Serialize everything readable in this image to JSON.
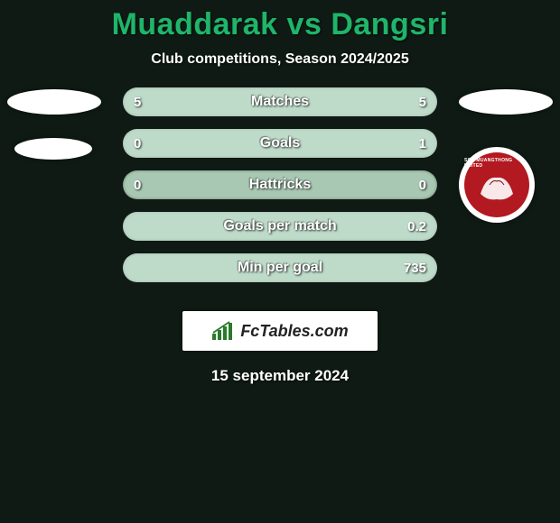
{
  "background_color": "#0f1a14",
  "title": {
    "left": "Muaddarak",
    "vs": " vs ",
    "right": "Dangsri",
    "color": "#1fb56a",
    "fontsize": 34
  },
  "subtitle": {
    "text": "Club competitions, Season 2024/2025",
    "color": "#ffffff",
    "fontsize": 16
  },
  "rows": [
    {
      "label": "Matches",
      "left_val": "5",
      "right_val": "5",
      "left_pct": 50,
      "right_pct": 50
    },
    {
      "label": "Goals",
      "left_val": "0",
      "right_val": "1",
      "left_pct": 0,
      "right_pct": 100
    },
    {
      "label": "Hattricks",
      "left_val": "0",
      "right_val": "0",
      "left_pct": 0,
      "right_pct": 0
    },
    {
      "label": "Goals per match",
      "left_val": "",
      "right_val": "0.2",
      "left_pct": 0,
      "right_pct": 100
    },
    {
      "label": "Min per goal",
      "left_val": "",
      "right_val": "735",
      "left_pct": 0,
      "right_pct": 100
    }
  ],
  "bar_style": {
    "track_color": "#a9c8b3",
    "fill_color_left": "#cfeadb",
    "fill_color_right": "#cfeadb",
    "height": 32,
    "radius": 16,
    "gap": 14,
    "label_color": "#ffffff",
    "value_color": "#ffffff",
    "label_fontsize": 16
  },
  "left_badges": {
    "ellipse_color": "#ffffff"
  },
  "right_crest": {
    "bg_color": "#ffffff",
    "inner_color": "#b31920",
    "text": "SCG MUANGTHONG UNITED"
  },
  "logo": {
    "text": "FcTables.com",
    "box_bg": "#ffffff",
    "text_color": "#222222",
    "icon_color": "#2a7a2a"
  },
  "date": {
    "text": "15 september 2024",
    "color": "#ffffff",
    "fontsize": 17
  }
}
